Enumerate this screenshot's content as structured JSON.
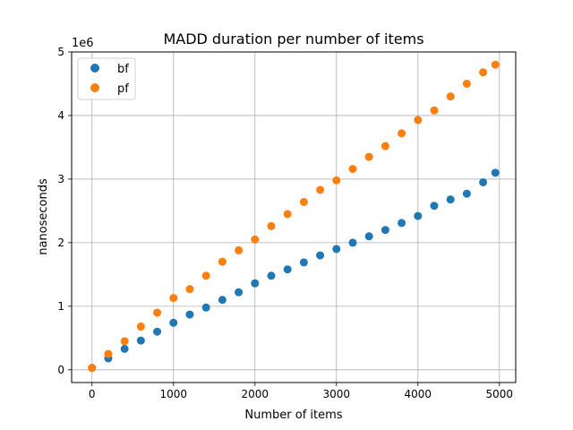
{
  "chart_data": {
    "type": "scatter",
    "title": "MADD duration per number of items",
    "xlabel": "Number of items",
    "ylabel": "nanoseconds",
    "y_offset_label": "1e6",
    "xlim": [
      -250,
      5200
    ],
    "ylim": [
      -0.2,
      5.0
    ],
    "x_ticks": [
      0,
      1000,
      2000,
      3000,
      4000,
      5000
    ],
    "x_tick_labels": [
      "0",
      "1000",
      "2000",
      "3000",
      "4000",
      "5000"
    ],
    "y_ticks": [
      0,
      1,
      2,
      3,
      4,
      5
    ],
    "y_tick_labels": [
      "0",
      "1",
      "2",
      "3",
      "4",
      "5"
    ],
    "grid": true,
    "legend_position": "top-left",
    "x": [
      0,
      200,
      400,
      600,
      800,
      1000,
      1200,
      1400,
      1600,
      1800,
      2000,
      2200,
      2400,
      2600,
      2800,
      3000,
      3200,
      3400,
      3600,
      3800,
      4000,
      4200,
      4400,
      4600,
      4800,
      4950
    ],
    "series": [
      {
        "name": "bf",
        "color": "#1f77b4",
        "values": [
          0.03,
          0.18,
          0.33,
          0.46,
          0.6,
          0.74,
          0.87,
          0.98,
          1.1,
          1.22,
          1.36,
          1.48,
          1.58,
          1.69,
          1.8,
          1.9,
          2.0,
          2.1,
          2.2,
          2.31,
          2.42,
          2.58,
          2.68,
          2.77,
          2.95,
          3.1
        ]
      },
      {
        "name": "pf",
        "color": "#ff7f0e",
        "values": [
          0.03,
          0.25,
          0.45,
          0.68,
          0.9,
          1.13,
          1.27,
          1.48,
          1.7,
          1.88,
          2.05,
          2.26,
          2.45,
          2.64,
          2.83,
          2.98,
          3.16,
          3.35,
          3.52,
          3.72,
          3.93,
          4.08,
          4.3,
          4.5,
          4.68,
          4.8
        ]
      }
    ]
  }
}
